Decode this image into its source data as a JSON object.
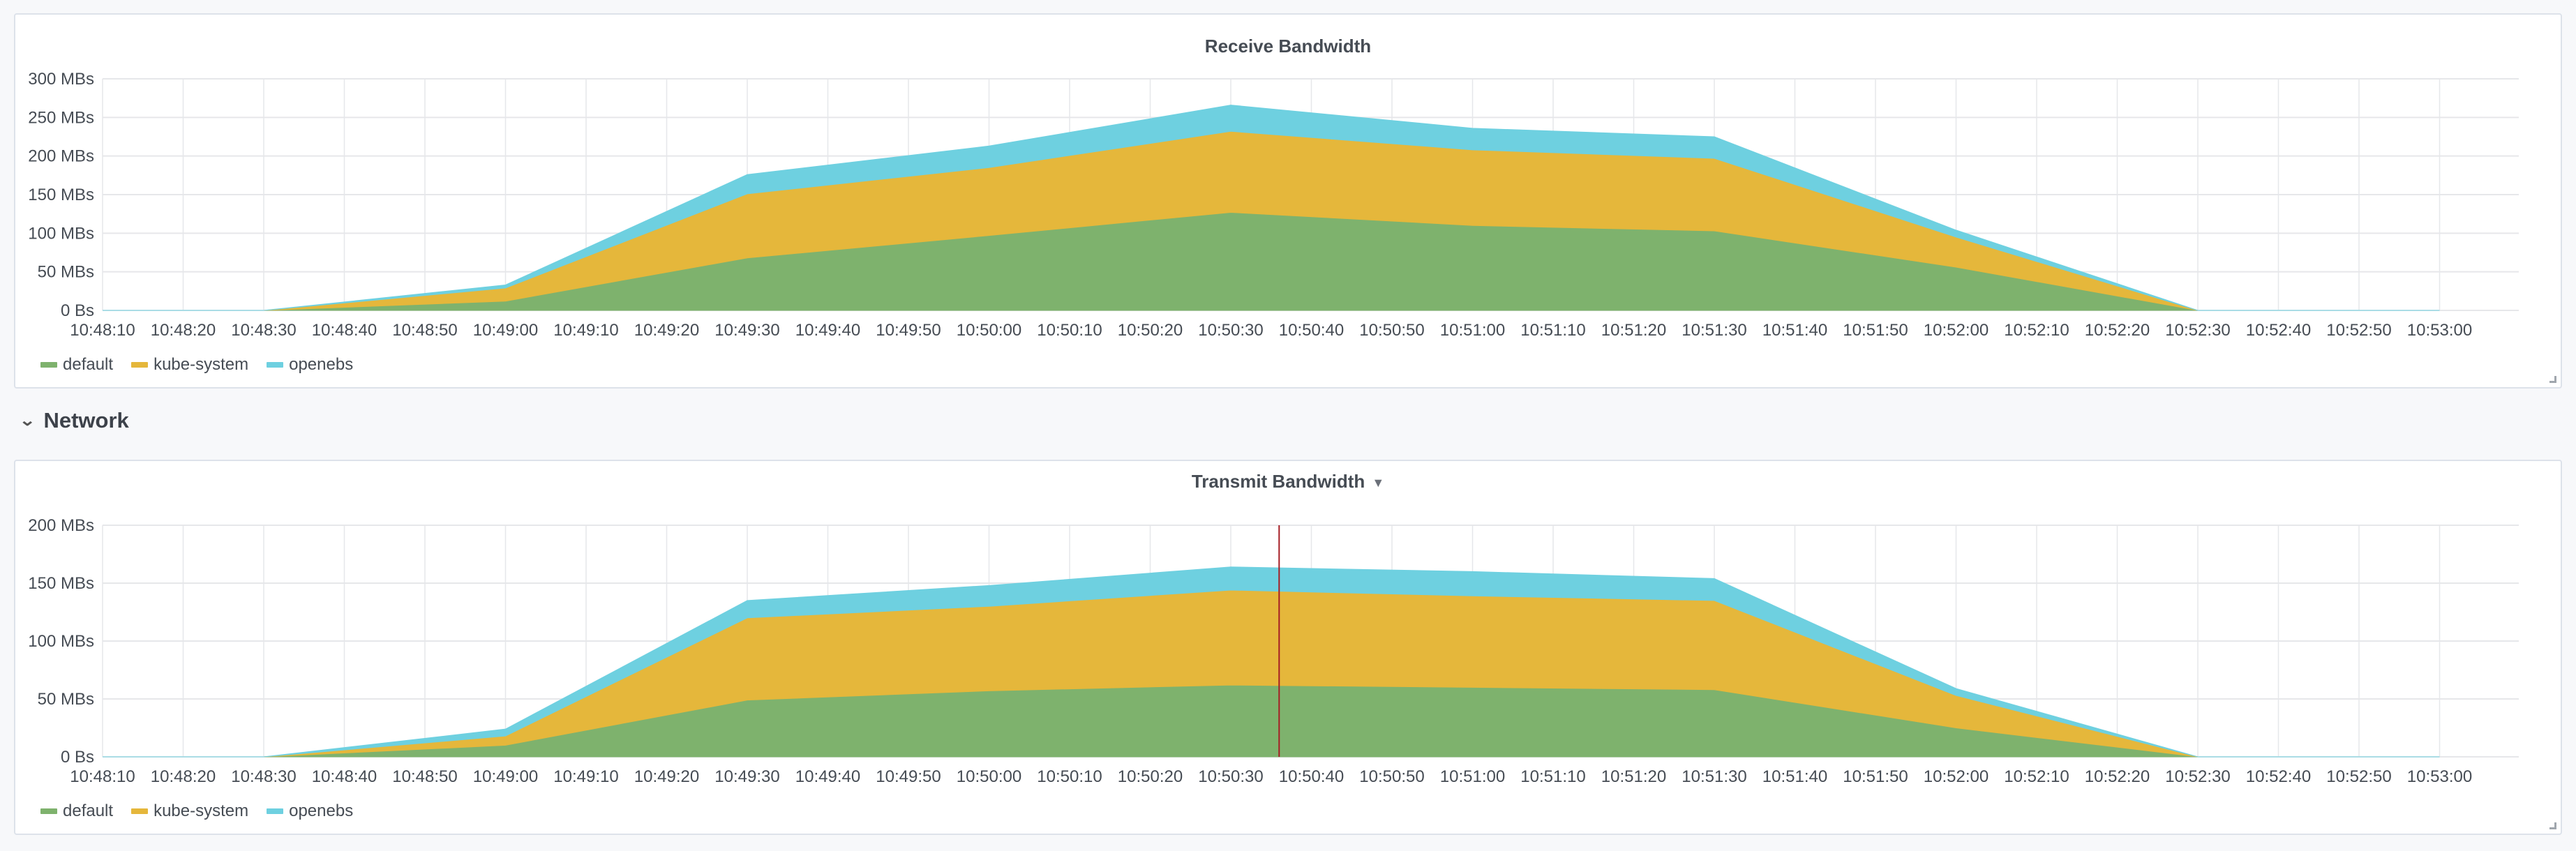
{
  "colors": {
    "default": "#7eb26d",
    "kube-system": "#e5b73b",
    "openebs": "#6ed0e0",
    "grid": "#e6e7ea",
    "crosshair": "#a61d24"
  },
  "row": {
    "title": "Network",
    "icon": "chevron-down-icon"
  },
  "chart_data": [
    {
      "type": "area",
      "stacked": true,
      "title": "Receive Bandwidth",
      "xlabel": "",
      "ylabel": "",
      "ylim": [
        0,
        300
      ],
      "yticks": [
        "0 Bs",
        "50 MBs",
        "100 MBs",
        "150 MBs",
        "200 MBs",
        "250 MBs",
        "300 MBs"
      ],
      "ytick_values": [
        0,
        50,
        100,
        150,
        200,
        250,
        300
      ],
      "xticks": [
        "10:48:10",
        "10:48:20",
        "10:48:30",
        "10:48:40",
        "10:48:50",
        "10:49:00",
        "10:49:10",
        "10:49:20",
        "10:49:30",
        "10:49:40",
        "10:49:50",
        "10:50:00",
        "10:50:10",
        "10:50:20",
        "10:50:30",
        "10:50:40",
        "10:50:50",
        "10:51:00",
        "10:51:10",
        "10:51:20",
        "10:51:30",
        "10:51:40",
        "10:51:50",
        "10:52:00",
        "10:52:10",
        "10:52:20",
        "10:52:30",
        "10:52:40",
        "10:52:50",
        "10:53:00"
      ],
      "x": [
        "10:48:10",
        "10:48:30",
        "10:49:00",
        "10:49:30",
        "10:50:00",
        "10:50:30",
        "10:51:00",
        "10:51:30",
        "10:52:00",
        "10:52:30",
        "10:53:00"
      ],
      "series": [
        {
          "name": "default",
          "values": [
            0,
            0,
            12,
            68,
            97,
            127,
            110,
            103,
            56,
            0,
            0
          ]
        },
        {
          "name": "kube-system",
          "values": [
            0,
            0,
            17,
            83,
            88,
            105,
            98,
            94,
            39,
            0,
            0
          ]
        },
        {
          "name": "openebs",
          "values": [
            0,
            0,
            4,
            25,
            28,
            34,
            28,
            28,
            9,
            0,
            0
          ]
        }
      ],
      "legend": [
        "default",
        "kube-system",
        "openebs"
      ],
      "legend_position": "bottom-left",
      "grid": true
    },
    {
      "type": "area",
      "stacked": true,
      "title": "Transmit Bandwidth",
      "xlabel": "",
      "ylabel": "",
      "ylim": [
        0,
        200
      ],
      "yticks": [
        "0 Bs",
        "50 MBs",
        "100 MBs",
        "150 MBs",
        "200 MBs"
      ],
      "ytick_values": [
        0,
        50,
        100,
        150,
        200
      ],
      "xticks": [
        "10:48:10",
        "10:48:20",
        "10:48:30",
        "10:48:40",
        "10:48:50",
        "10:49:00",
        "10:49:10",
        "10:49:20",
        "10:49:30",
        "10:49:40",
        "10:49:50",
        "10:50:00",
        "10:50:10",
        "10:50:20",
        "10:50:30",
        "10:50:40",
        "10:50:50",
        "10:51:00",
        "10:51:10",
        "10:51:20",
        "10:51:30",
        "10:51:40",
        "10:51:50",
        "10:52:00",
        "10:52:10",
        "10:52:20",
        "10:52:30",
        "10:52:40",
        "10:52:50",
        "10:53:00"
      ],
      "x": [
        "10:48:10",
        "10:48:30",
        "10:49:00",
        "10:49:30",
        "10:50:00",
        "10:50:30",
        "10:51:00",
        "10:51:30",
        "10:52:00",
        "10:52:30",
        "10:53:00"
      ],
      "series": [
        {
          "name": "default",
          "values": [
            0,
            0,
            10,
            49,
            57,
            62,
            60,
            58,
            25,
            0,
            0
          ]
        },
        {
          "name": "kube-system",
          "values": [
            0,
            0,
            8,
            71,
            73,
            82,
            79,
            77,
            28,
            0,
            0
          ]
        },
        {
          "name": "openebs",
          "values": [
            0,
            0,
            6,
            15,
            18,
            20,
            21,
            19,
            6,
            0,
            0
          ]
        }
      ],
      "crosshair_time": "10:50:36",
      "legend": [
        "default",
        "kube-system",
        "openebs"
      ],
      "legend_position": "bottom-left",
      "grid": true
    }
  ]
}
